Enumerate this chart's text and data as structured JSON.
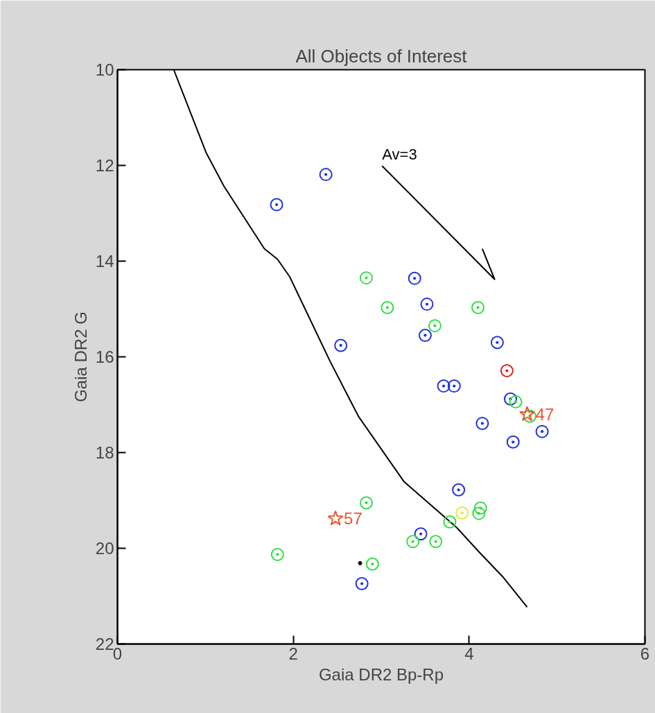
{
  "chart_data": {
    "type": "scatter",
    "title": "All Objects of Interest",
    "xlabel": "Gaia DR2 Bp-Rp",
    "ylabel": "Gaia DR2 G",
    "xlim": [
      0,
      6
    ],
    "xticks": [
      0,
      2,
      4,
      6
    ],
    "ylim": [
      22,
      10
    ],
    "yticks": [
      10,
      12,
      14,
      16,
      18,
      20,
      22
    ],
    "grid": false,
    "series": [
      {
        "type": "line",
        "color": "#000000",
        "x": [
          0.64,
          1.01,
          1.21,
          1.67,
          1.82,
          1.96,
          2.42,
          2.74,
          3.26,
          3.86,
          4.12,
          4.38,
          4.66
        ],
        "values": [
          10.0,
          11.74,
          12.43,
          13.74,
          13.96,
          14.33,
          16.1,
          17.24,
          18.61,
          19.57,
          20.09,
          20.59,
          21.23
        ]
      },
      {
        "type": "line",
        "color": "#000000",
        "x": [
          3.01,
          4.29,
          4.15
        ],
        "values": [
          12.01,
          14.38,
          13.74
        ]
      },
      {
        "marker": "circle",
        "color": "#2233dd",
        "x": [
          2.37,
          1.81,
          3.38,
          3.52,
          3.5,
          2.54,
          4.32,
          3.71,
          3.83,
          4.47,
          4.15,
          4.83,
          4.5,
          3.88,
          3.45,
          2.78
        ],
        "values": [
          12.19,
          12.82,
          14.36,
          14.9,
          15.55,
          15.76,
          15.7,
          16.61,
          16.61,
          16.88,
          17.39,
          17.56,
          17.78,
          18.78,
          19.7,
          20.74
        ]
      },
      {
        "marker": "circle",
        "color": "#33dd44",
        "x": [
          2.83,
          3.07,
          4.1,
          3.61,
          4.53,
          4.69,
          2.83,
          4.13,
          4.11,
          3.78,
          3.36,
          3.62,
          1.82,
          2.9
        ],
        "values": [
          14.35,
          14.97,
          14.97,
          15.35,
          16.94,
          17.24,
          19.05,
          19.16,
          19.27,
          19.45,
          19.86,
          19.86,
          20.13,
          20.33
        ]
      },
      {
        "marker": "circle",
        "color": "#dd2222",
        "x": [
          4.43
        ],
        "values": [
          16.29
        ]
      },
      {
        "marker": "circle",
        "color": "#e8e832",
        "x": [
          3.92
        ],
        "values": [
          19.26
        ]
      },
      {
        "marker": "star",
        "color": "#ee5533",
        "x": [
          4.66,
          2.48
        ],
        "values": [
          17.2,
          19.38
        ]
      },
      {
        "marker": "dot",
        "color": "#000000",
        "x": [
          2.76
        ],
        "values": [
          20.31
        ]
      }
    ],
    "annotations": [
      {
        "text": "Av=3",
        "x": 3.01,
        "y": 12.01
      },
      {
        "text": "47",
        "x": 4.66,
        "y": 17.2
      },
      {
        "text": "57",
        "x": 2.48,
        "y": 19.38
      }
    ]
  }
}
